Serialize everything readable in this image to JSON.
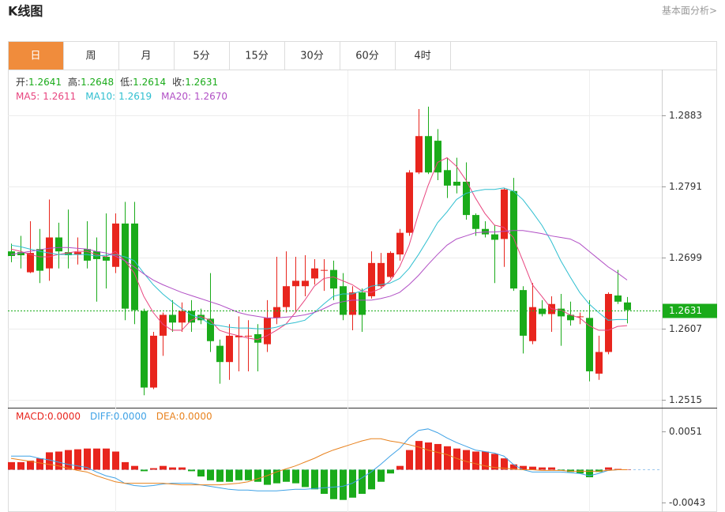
{
  "header": {
    "title": "K线图",
    "link": "基本面分析>"
  },
  "tabs": {
    "items": [
      "日",
      "周",
      "月",
      "5分",
      "15分",
      "30分",
      "60分",
      "4时"
    ],
    "active": "日"
  },
  "quote": {
    "value_color": "#1aab1a",
    "items": [
      {
        "label": "开:",
        "value": "1.2641"
      },
      {
        "label": "高:",
        "value": "1.2648"
      },
      {
        "label": "低:",
        "value": "1.2614"
      },
      {
        "label": "收:",
        "value": "1.2631"
      }
    ]
  },
  "chart_data": [
    {
      "type": "candlestick",
      "up_color": "#e8251d",
      "down_color": "#1aab1a",
      "open": [
        1.2707,
        1.2706,
        1.268,
        1.271,
        1.2685,
        1.2725,
        1.2706,
        1.2703,
        1.271,
        1.2707,
        1.27,
        1.2687,
        1.2743,
        1.2743,
        1.263,
        1.2531,
        1.2598,
        1.2625,
        1.2615,
        1.263,
        1.2625,
        1.262,
        1.2585,
        1.2564,
        1.2596,
        1.2597,
        1.26,
        1.2587,
        1.2621,
        1.2635,
        1.2662,
        1.2662,
        1.2672,
        1.2682,
        1.2683,
        1.2662,
        1.2625,
        1.2654,
        1.2649,
        1.2662,
        1.2674,
        1.2703,
        1.2731,
        1.2809,
        1.2856,
        1.285,
        1.2812,
        1.2797,
        1.2797,
        1.2754,
        1.2736,
        1.2729,
        1.2723,
        1.2785,
        1.2657,
        1.2591,
        1.2633,
        1.2626,
        1.2633,
        1.2625,
        1.2622,
        1.2621,
        1.2549,
        1.2577,
        1.265,
        1.2641
      ],
      "high": [
        1.2717,
        1.2727,
        1.2746,
        1.2736,
        1.2774,
        1.2744,
        1.2761,
        1.2725,
        1.2746,
        1.2725,
        1.2756,
        1.2756,
        1.2771,
        1.2771,
        1.2633,
        1.2603,
        1.2628,
        1.2644,
        1.2641,
        1.2644,
        1.2633,
        1.2679,
        1.2593,
        1.2613,
        1.2623,
        1.2618,
        1.2613,
        1.2644,
        1.27,
        1.2707,
        1.27,
        1.2702,
        1.2697,
        1.2697,
        1.2695,
        1.2679,
        1.2662,
        1.2659,
        1.2707,
        1.2705,
        1.2707,
        1.2736,
        1.2812,
        1.2891,
        1.2894,
        1.2865,
        1.2828,
        1.2828,
        1.2822,
        1.2756,
        1.2746,
        1.2741,
        1.2789,
        1.2802,
        1.2662,
        1.2666,
        1.2644,
        1.2649,
        1.2652,
        1.2642,
        1.2628,
        1.2644,
        1.2598,
        1.2654,
        1.2683,
        1.2648
      ],
      "low": [
        1.2693,
        1.2685,
        1.2679,
        1.2666,
        1.2669,
        1.2685,
        1.2685,
        1.269,
        1.2685,
        1.2642,
        1.2659,
        1.2679,
        1.2618,
        1.2613,
        1.2521,
        1.2529,
        1.2572,
        1.2603,
        1.2603,
        1.2603,
        1.2613,
        1.2577,
        1.2536,
        1.2541,
        1.2552,
        1.2552,
        1.2552,
        1.2577,
        1.2613,
        1.2628,
        1.2628,
        1.2649,
        1.2664,
        1.2656,
        1.2644,
        1.2618,
        1.2605,
        1.2603,
        1.2646,
        1.2659,
        1.2672,
        1.2695,
        1.2727,
        1.2807,
        1.2807,
        1.2799,
        1.2776,
        1.2782,
        1.2748,
        1.2727,
        1.2725,
        1.2666,
        1.2687,
        1.2656,
        1.2575,
        1.2587,
        1.2623,
        1.2603,
        1.2585,
        1.2611,
        1.2613,
        1.2539,
        1.2541,
        1.2574,
        1.2639,
        1.2614
      ],
      "close": [
        1.2701,
        1.2702,
        1.2705,
        1.2682,
        1.2725,
        1.2707,
        1.2702,
        1.2706,
        1.2695,
        1.2697,
        1.2695,
        1.2743,
        1.2633,
        1.2631,
        1.2531,
        1.2598,
        1.2625,
        1.2615,
        1.263,
        1.2615,
        1.2618,
        1.2591,
        1.2564,
        1.2598,
        1.2598,
        1.2598,
        1.2589,
        1.2621,
        1.2635,
        1.2662,
        1.2669,
        1.2669,
        1.2685,
        1.2683,
        1.2659,
        1.2625,
        1.2654,
        1.2625,
        1.2692,
        1.2692,
        1.2705,
        1.2731,
        1.2809,
        1.2856,
        1.2809,
        1.2809,
        1.2792,
        1.2792,
        1.2754,
        1.2736,
        1.2729,
        1.2722,
        1.2787,
        1.2659,
        1.2598,
        1.2635,
        1.2626,
        1.2639,
        1.2623,
        1.2618,
        1.2623,
        1.2552,
        1.2577,
        1.2652,
        1.2642,
        1.2631
      ],
      "series": [
        {
          "name": "MA5:",
          "current": "1.2611",
          "color": "#e8457f",
          "values": [
            1.271,
            1.2707,
            1.2703,
            1.27,
            1.27,
            1.2703,
            1.2705,
            1.2707,
            1.2707,
            1.2703,
            1.27,
            1.2707,
            1.2695,
            1.2679,
            1.2649,
            1.2628,
            1.2613,
            1.2605,
            1.2605,
            1.2618,
            1.2623,
            1.2618,
            1.2605,
            1.2601,
            1.2598,
            1.2595,
            1.2593,
            1.2598,
            1.2605,
            1.2613,
            1.2628,
            1.2644,
            1.2662,
            1.2672,
            1.2674,
            1.2669,
            1.2664,
            1.2656,
            1.2654,
            1.2659,
            1.2669,
            1.2687,
            1.2715,
            1.2756,
            1.2792,
            1.2822,
            1.2828,
            1.2817,
            1.2799,
            1.2776,
            1.2756,
            1.2741,
            1.2738,
            1.2725,
            1.2695,
            1.2664,
            1.2649,
            1.2633,
            1.2631,
            1.2625,
            1.2621,
            1.2611,
            1.2605,
            1.2605,
            1.261,
            1.2611
          ]
        },
        {
          "name": "MA10:",
          "current": "1.2619",
          "color": "#2fbfd0",
          "values": [
            1.2715,
            1.2713,
            1.271,
            1.2707,
            1.2705,
            1.2703,
            1.2703,
            1.2703,
            1.2703,
            1.2701,
            1.2702,
            1.2703,
            1.27,
            1.2695,
            1.2679,
            1.2664,
            1.2652,
            1.2642,
            1.2633,
            1.2625,
            1.2621,
            1.2613,
            1.2611,
            1.2609,
            1.2608,
            1.2608,
            1.2607,
            1.2607,
            1.2609,
            1.2613,
            1.2615,
            1.2618,
            1.2628,
            1.2639,
            1.2649,
            1.2652,
            1.2652,
            1.2656,
            1.2662,
            1.2664,
            1.2666,
            1.2672,
            1.2685,
            1.2703,
            1.2723,
            1.2744,
            1.2758,
            1.2774,
            1.2782,
            1.2785,
            1.2787,
            1.2787,
            1.2789,
            1.2785,
            1.2774,
            1.2758,
            1.2741,
            1.272,
            1.2695,
            1.2674,
            1.2654,
            1.2639,
            1.2628,
            1.2618,
            1.2619,
            1.2619
          ]
        },
        {
          "name": "MA20:",
          "current": "1.2670",
          "color": "#b14fc5",
          "values": [
            1.2703,
            1.2705,
            1.2707,
            1.2709,
            1.2711,
            1.2712,
            1.2712,
            1.2711,
            1.271,
            1.2707,
            1.2705,
            1.2701,
            1.2695,
            1.2687,
            1.2678,
            1.267,
            1.2664,
            1.2659,
            1.2654,
            1.265,
            1.2646,
            1.2642,
            1.2638,
            1.2633,
            1.2628,
            1.2625,
            1.2623,
            1.2621,
            1.2621,
            1.2622,
            1.2623,
            1.2625,
            1.2628,
            1.2633,
            1.2639,
            1.2642,
            1.2644,
            1.2644,
            1.2644,
            1.2646,
            1.2649,
            1.2654,
            1.2664,
            1.2676,
            1.269,
            1.2703,
            1.2715,
            1.2723,
            1.2727,
            1.2731,
            1.2732,
            1.2732,
            1.2733,
            1.2734,
            1.2734,
            1.2732,
            1.273,
            1.2727,
            1.2725,
            1.2723,
            1.2717,
            1.2707,
            1.2697,
            1.2687,
            1.2679,
            1.267
          ]
        }
      ],
      "ylim": [
        1.2506,
        1.2942
      ],
      "yticks": [
        1.2515,
        1.2607,
        1.2699,
        1.2791,
        1.2883
      ],
      "grid": true,
      "last_price": 1.2631,
      "last_price_color": "#1aab1a"
    },
    {
      "type": "macd",
      "series": [
        {
          "name": "MACD:",
          "current": "0.0000",
          "kind": "bar",
          "color": "#e8251d",
          "negative_color": "#1aab1a",
          "values": [
            0.001,
            0.001,
            0.0012,
            0.0015,
            0.0023,
            0.0024,
            0.0026,
            0.0027,
            0.0028,
            0.0028,
            0.0028,
            0.0024,
            0.001,
            0.0005,
            -0.0002,
            0.0002,
            0.0005,
            0.0003,
            0.0003,
            -0.0002,
            -0.0009,
            -0.0014,
            -0.0016,
            -0.0016,
            -0.0014,
            -0.0014,
            -0.0016,
            -0.002,
            -0.0018,
            -0.0016,
            -0.0018,
            -0.0023,
            -0.0026,
            -0.0032,
            -0.0039,
            -0.004,
            -0.0037,
            -0.0032,
            -0.0026,
            -0.0016,
            -0.0005,
            0.0005,
            0.0026,
            0.0038,
            0.0036,
            0.0034,
            0.0031,
            0.0028,
            0.0026,
            0.0024,
            0.0024,
            0.0021,
            0.0015,
            0.0007,
            0.0005,
            0.0004,
            0.0003,
            0.0003,
            -0.0001,
            -0.0003,
            -0.0005,
            -0.001,
            -0.0003,
            0.0003,
            0.0001,
            0
          ]
        },
        {
          "name": "DIFF:",
          "current": "0.0000",
          "kind": "line",
          "color": "#3fa2e6",
          "values": [
            0.0018,
            0.0018,
            0.0018,
            0.0015,
            0.0013,
            0.001,
            0.0007,
            0.0005,
            0.0003,
            -0.0003,
            -0.0008,
            -0.0011,
            -0.0018,
            -0.0021,
            -0.0022,
            -0.0021,
            -0.0019,
            -0.0018,
            -0.0018,
            -0.0018,
            -0.002,
            -0.0022,
            -0.0024,
            -0.0026,
            -0.0027,
            -0.0027,
            -0.0028,
            -0.0028,
            -0.0028,
            -0.0027,
            -0.0026,
            -0.0026,
            -0.0025,
            -0.0024,
            -0.0023,
            -0.0022,
            -0.0018,
            -0.0011,
            -0.0003,
            0.0007,
            0.0018,
            0.0028,
            0.0042,
            0.0052,
            0.0054,
            0.0049,
            0.0042,
            0.0036,
            0.0031,
            0.0026,
            0.0024,
            0.0022,
            0.0018,
            0.0007,
            0,
            -0.0003,
            -0.0003,
            -0.0003,
            -0.0003,
            -0.0004,
            -0.0005,
            -0.0008,
            -0.0005,
            -0.0001,
            0,
            0
          ]
        },
        {
          "name": "DEA:",
          "current": "0.0000",
          "kind": "line",
          "color": "#e8821e",
          "values": [
            0.0015,
            0.0013,
            0.0011,
            0.0009,
            0.0007,
            0.0005,
            0.0002,
            -0.0001,
            -0.0003,
            -0.0008,
            -0.0012,
            -0.0016,
            -0.0018,
            -0.0018,
            -0.0018,
            -0.0018,
            -0.0018,
            -0.0019,
            -0.002,
            -0.002,
            -0.002,
            -0.002,
            -0.002,
            -0.0019,
            -0.0018,
            -0.0016,
            -0.0012,
            -0.0008,
            -0.0003,
            0.0001,
            0.0005,
            0.001,
            0.0015,
            0.0021,
            0.0026,
            0.003,
            0.0034,
            0.0038,
            0.0041,
            0.0041,
            0.0038,
            0.0036,
            0.0033,
            0.003,
            0.0026,
            0.0023,
            0.002,
            0.0015,
            0.0011,
            0.0008,
            0.0005,
            0.0003,
            0.0002,
            0.0001,
            0,
            0,
            -0.0001,
            -0.0001,
            -0.0001,
            -0.0002,
            -0.0002,
            -0.0002,
            -0.0002,
            -0.0001,
            0,
            0
          ]
        }
      ],
      "ylim": [
        -0.0056,
        0.0081
      ],
      "yticks": [
        -0.0043,
        0.0051
      ],
      "grid": false
    }
  ]
}
